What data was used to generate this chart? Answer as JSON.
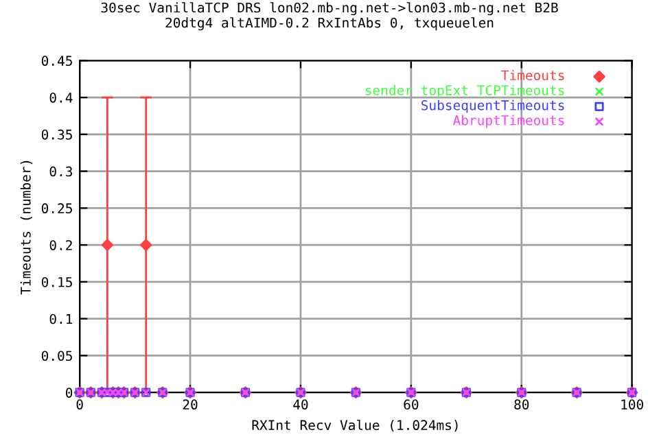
{
  "chart_data": {
    "type": "scatter",
    "title": "30sec VanillaTCP DRS lon02.mb-ng.net->lon03.mb-ng.net B2B\n20dtg4 altAIMD-0.2 RxIntAbs 0, txqueuelen",
    "xlabel": "RXInt Recv Value (1.024ms)",
    "ylabel": "Timeouts (number)",
    "x": [
      0,
      2,
      4,
      5,
      6,
      7,
      8,
      10,
      12,
      15,
      20,
      30,
      40,
      50,
      60,
      70,
      80,
      90,
      100
    ],
    "series": [
      {
        "name": "Timeouts",
        "color": "#ff4040",
        "marker": "diamond",
        "values": [
          0,
          0,
          0,
          0.2,
          0,
          0,
          0,
          0,
          0.2,
          0,
          0,
          0,
          0,
          0,
          0,
          0,
          0,
          0,
          0
        ],
        "errors": [
          null,
          null,
          null,
          0.2,
          null,
          null,
          null,
          null,
          0.2,
          null,
          null,
          null,
          null,
          null,
          null,
          null,
          null,
          null,
          null
        ]
      },
      {
        "name": "sender topExt TCPTimeouts",
        "color": "#40ff40",
        "marker": "cross",
        "values": [
          0,
          0,
          0,
          0,
          0,
          0,
          0,
          0,
          0,
          0,
          0,
          0,
          0,
          0,
          0,
          0,
          0,
          0,
          0
        ]
      },
      {
        "name": "SubsequentTimeouts",
        "color": "#4040ff",
        "marker": "square",
        "values": [
          0,
          0,
          0,
          0,
          0,
          0,
          0,
          0,
          0,
          0,
          0,
          0,
          0,
          0,
          0,
          0,
          0,
          0,
          0
        ]
      },
      {
        "name": "AbruptTimeouts",
        "color": "#ff40ff",
        "marker": "cross",
        "values": [
          0,
          0,
          0,
          0,
          0,
          0,
          0,
          0,
          0,
          0,
          0,
          0,
          0,
          0,
          0,
          0,
          0,
          0,
          0
        ]
      }
    ],
    "xlim": [
      0,
      100
    ],
    "xticks": [
      0,
      20,
      40,
      60,
      80,
      100
    ],
    "ylim": [
      0,
      0.45
    ],
    "yticks": [
      0,
      0.05,
      0.1,
      0.15,
      0.2,
      0.25,
      0.3,
      0.35,
      0.4,
      0.45
    ],
    "grid": true,
    "legend": "top right"
  }
}
